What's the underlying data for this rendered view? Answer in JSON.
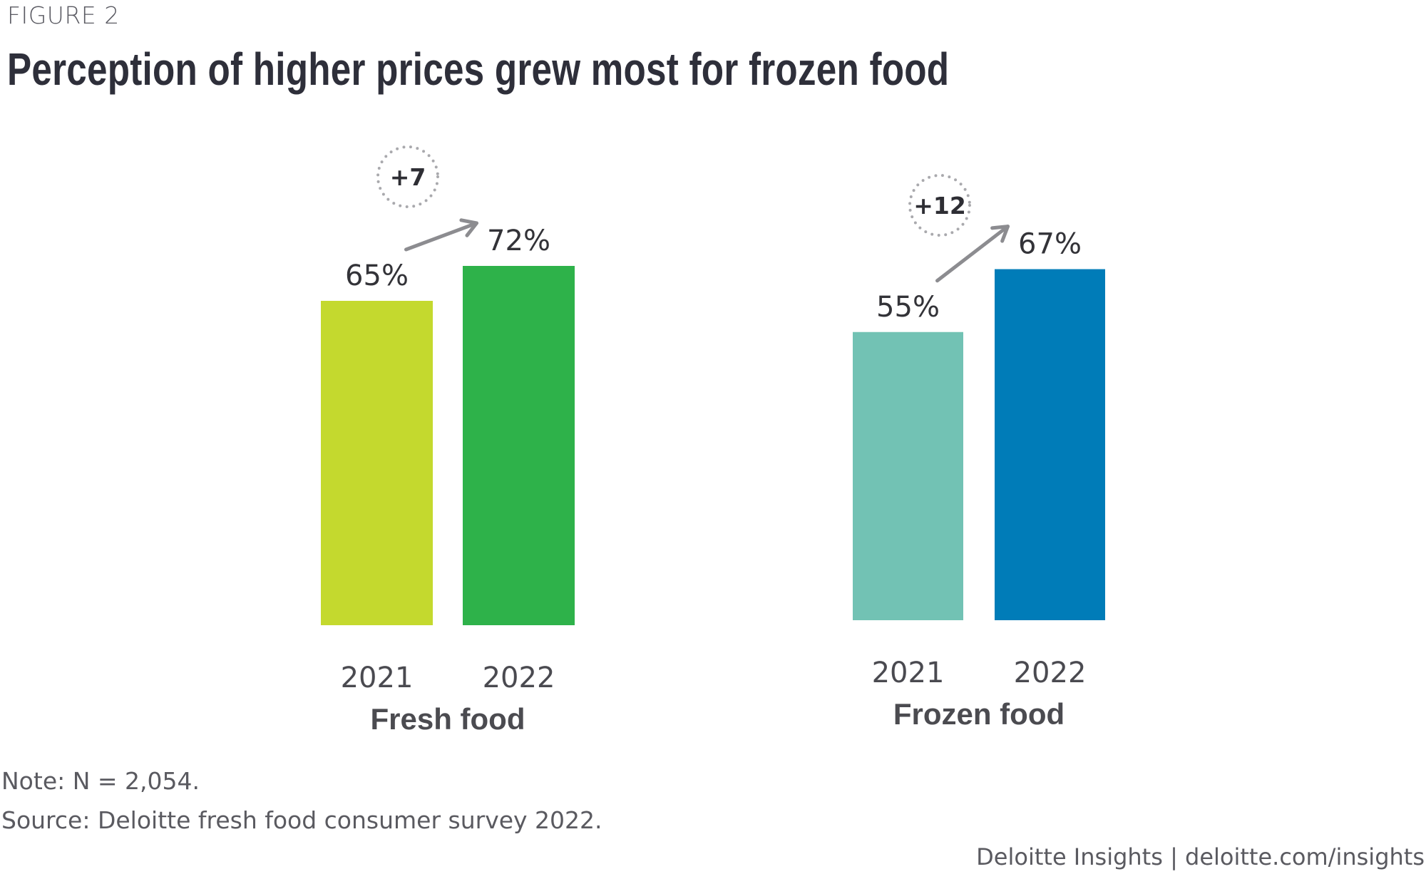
{
  "figure_label": "FIGURE 2",
  "title": "Perception of higher prices grew most for frozen food",
  "chart_data": {
    "type": "bar",
    "title": "Perception of higher prices grew most for frozen food",
    "xlabel": "",
    "ylabel": "",
    "ylim": [
      0,
      100
    ],
    "grid": false,
    "categories": [
      "Fresh food",
      "Frozen food"
    ],
    "groups": [
      {
        "name": "Fresh food",
        "bars": [
          {
            "year": "2021",
            "value": 65,
            "label": "65%",
            "color": "#c4d92e"
          },
          {
            "year": "2022",
            "value": 72,
            "label": "72%",
            "color": "#2eb24a"
          }
        ],
        "delta": "+7"
      },
      {
        "name": "Frozen food",
        "bars": [
          {
            "year": "2021",
            "value": 55,
            "label": "55%",
            "color": "#72c2b4"
          },
          {
            "year": "2022",
            "value": 67,
            "label": "67%",
            "color": "#007cb8"
          }
        ],
        "delta": "+12"
      }
    ],
    "annotation_color": "#8c8c90"
  },
  "footer": {
    "note": "Note: N = 2,054.",
    "source": "Source: Deloitte fresh food consumer survey 2022.",
    "credit": "Deloitte Insights | deloitte.com/insights"
  }
}
